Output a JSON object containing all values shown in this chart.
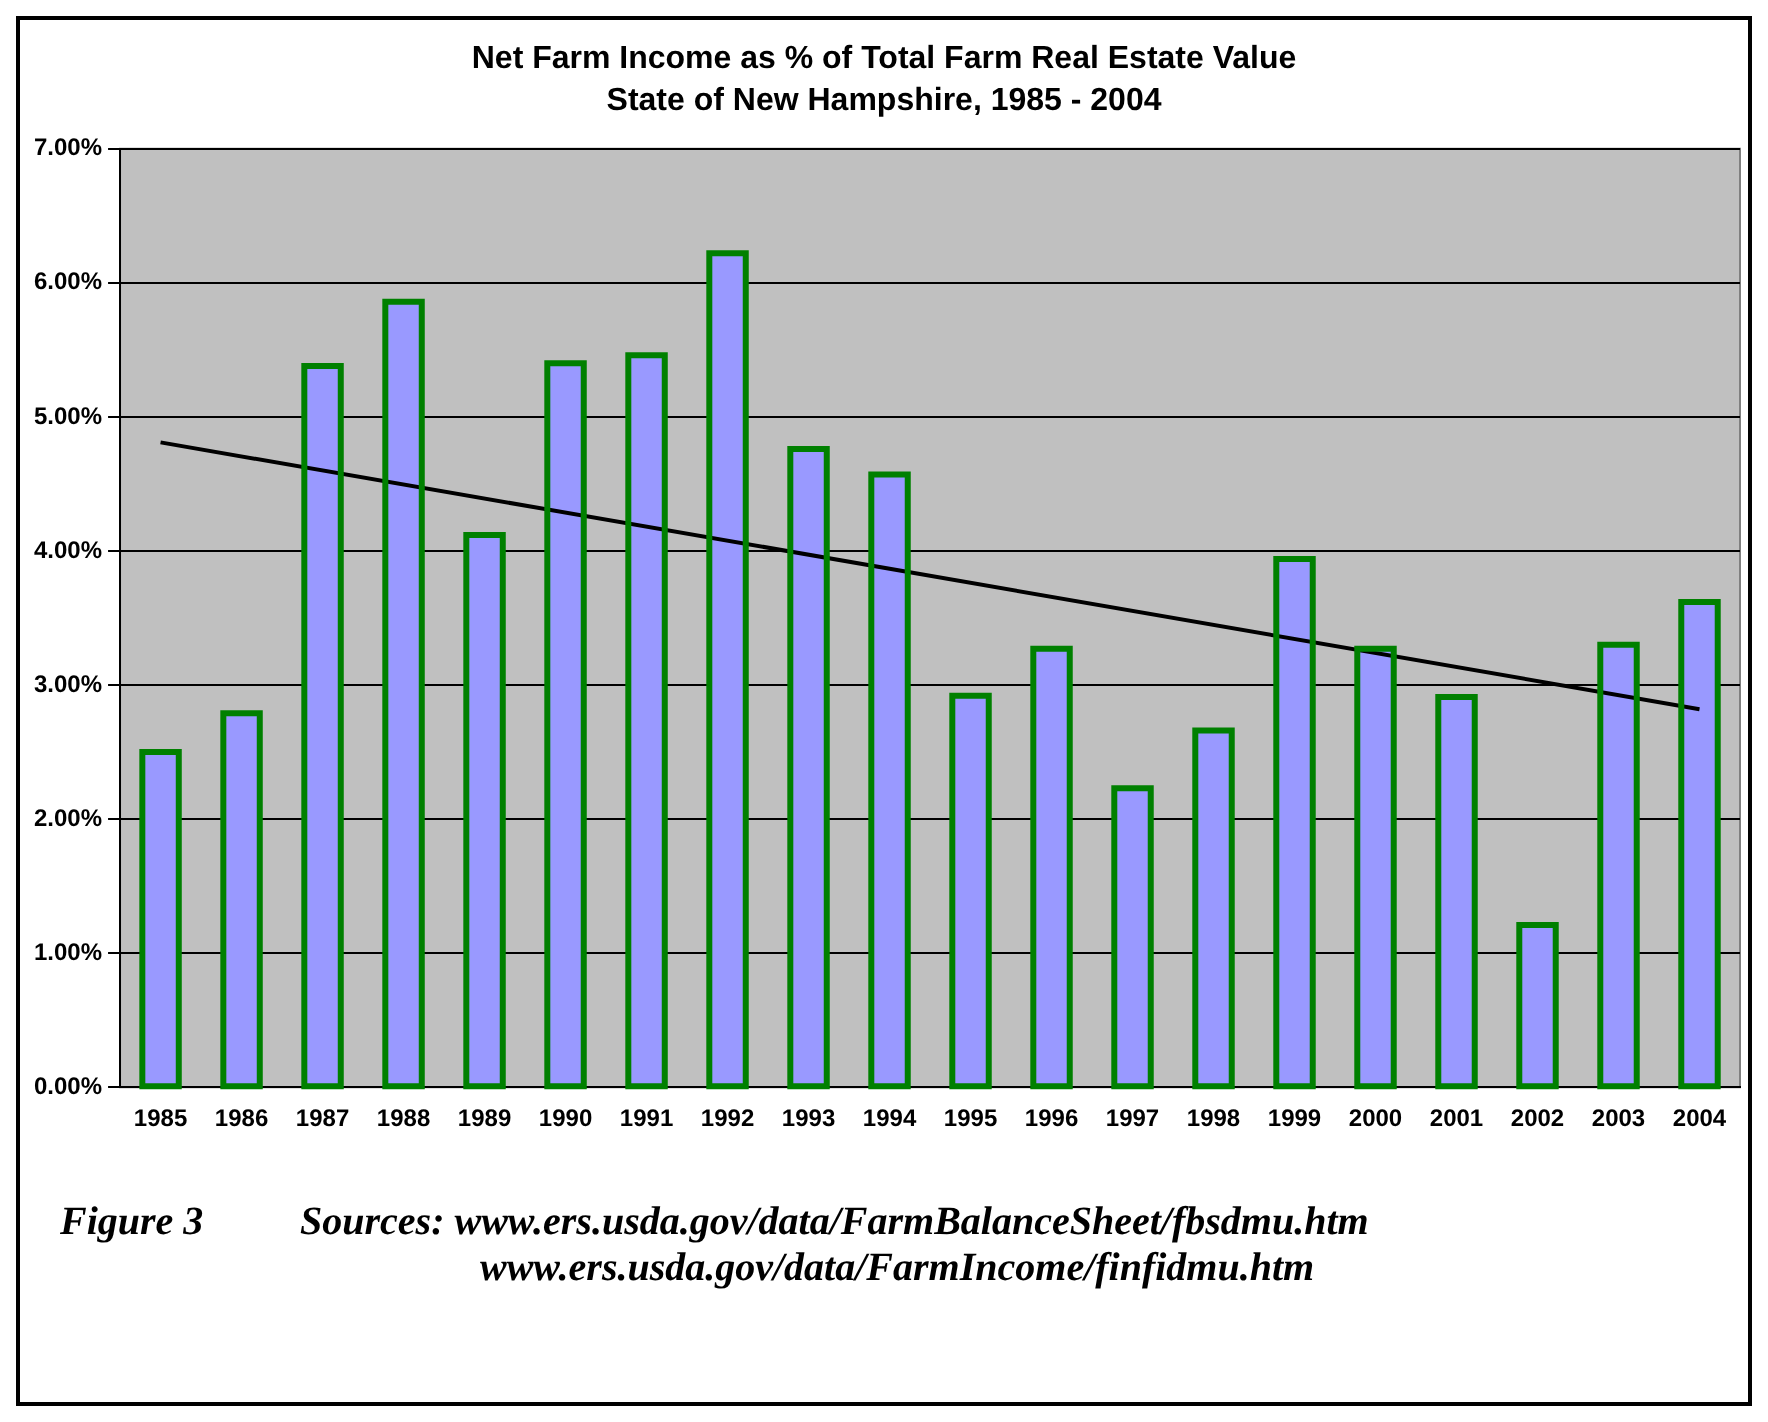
{
  "chart_data": {
    "type": "bar",
    "title": "Net Farm Income as % of Total Farm Real Estate Value",
    "subtitle": "State of New Hampshire, 1985 - 2004",
    "categories": [
      "1985",
      "1986",
      "1987",
      "1988",
      "1989",
      "1990",
      "1991",
      "1992",
      "1993",
      "1994",
      "1995",
      "1996",
      "1997",
      "1998",
      "1999",
      "2000",
      "2001",
      "2002",
      "2003",
      "2004"
    ],
    "series": [
      {
        "color": "#9999ff",
        "values": [
          2.5,
          2.79,
          5.38,
          5.86,
          4.12,
          5.4,
          5.46,
          6.22,
          4.76,
          4.57,
          2.92,
          3.27,
          2.23,
          2.66,
          3.94,
          3.27,
          2.91,
          1.21,
          3.3,
          3.62
        ]
      },
      {
        "type": "line",
        "color": "#000000",
        "values": [
          4.81,
          null,
          null,
          null,
          null,
          null,
          null,
          null,
          null,
          null,
          null,
          null,
          null,
          null,
          null,
          null,
          null,
          null,
          null,
          2.82
        ],
        "marker": "none"
      }
    ],
    "ylim": [
      0,
      7
    ],
    "yticks": [
      {
        "value": 0,
        "label": "0.00%"
      },
      {
        "value": 1,
        "label": "1.00%"
      },
      {
        "value": 2,
        "label": "2.00%"
      },
      {
        "value": 3,
        "label": "3.00%"
      },
      {
        "value": 4,
        "label": "4.00%"
      },
      {
        "value": 5,
        "label": "5.00%"
      },
      {
        "value": 6,
        "label": "6.00%"
      },
      {
        "value": 7,
        "label": "7.00%"
      }
    ],
    "grid": "y",
    "legend": false,
    "annotations": [
      "Figure 3",
      "Sources:  www.ers.usda.gov/data/FarmBalanceSheet/fbsdmu.htm",
      "www.ers.usda.gov/data/FarmIncome/finfidmu.htm"
    ]
  }
}
